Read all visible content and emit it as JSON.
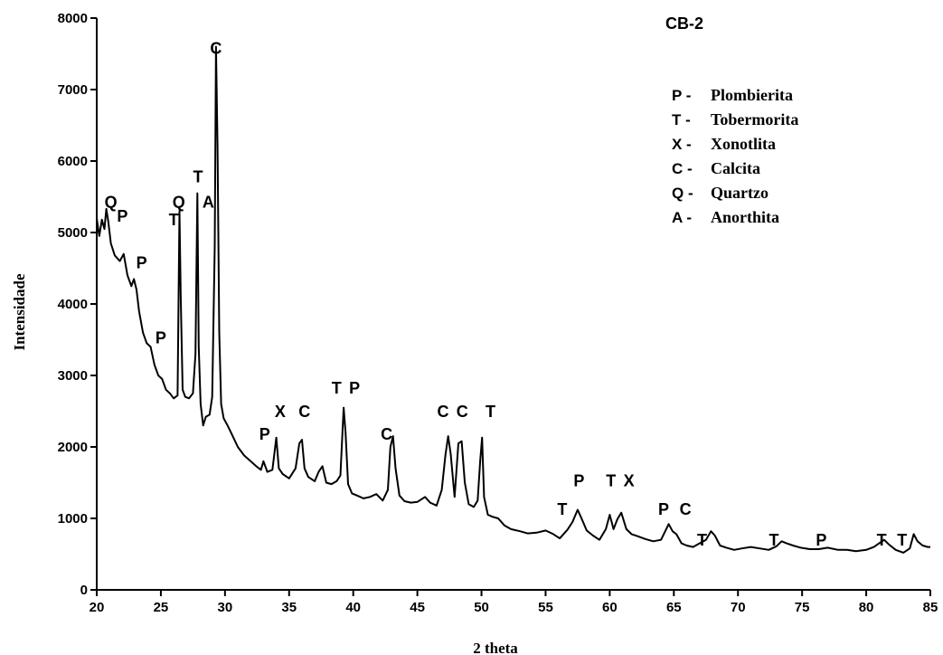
{
  "chart_data": {
    "type": "line",
    "title": "CB-2",
    "xlabel": "2 theta",
    "ylabel": "Intensidade",
    "xlim": [
      20,
      85
    ],
    "ylim": [
      0,
      8000
    ],
    "x_ticks": [
      "20",
      "25",
      "30",
      "35",
      "40",
      "45",
      "50",
      "55",
      "60",
      "65",
      "70",
      "75",
      "80",
      "85"
    ],
    "y_ticks": [
      "0",
      "1000",
      "2000",
      "3000",
      "4000",
      "5000",
      "6000",
      "7000",
      "8000"
    ],
    "grid": false,
    "legend_position": "top-right",
    "legend": [
      {
        "code": "P -",
        "name": "Plombierita"
      },
      {
        "code": "T -",
        "name": "Tobermorita"
      },
      {
        "code": "X -",
        "name": "Xonotlita"
      },
      {
        "code": "C -",
        "name": "Calcita"
      },
      {
        "code": "Q -",
        "name": "Quartzo"
      },
      {
        "code": "A -",
        "name": "Anorthita"
      }
    ],
    "peak_labels": [
      {
        "text": "Q",
        "x": 21.1,
        "y": 5350
      },
      {
        "text": "P",
        "x": 22.0,
        "y": 5150
      },
      {
        "text": "P",
        "x": 23.5,
        "y": 4500
      },
      {
        "text": "P",
        "x": 25.0,
        "y": 3450
      },
      {
        "text": "Q",
        "x": 26.4,
        "y": 5350
      },
      {
        "text": "T",
        "x": 26.0,
        "y": 5100
      },
      {
        "text": "T",
        "x": 27.9,
        "y": 5700
      },
      {
        "text": "A",
        "x": 28.7,
        "y": 5350
      },
      {
        "text": "C",
        "x": 29.3,
        "y": 7500
      },
      {
        "text": "P",
        "x": 33.1,
        "y": 2100
      },
      {
        "text": "X",
        "x": 34.3,
        "y": 2420
      },
      {
        "text": "C",
        "x": 36.2,
        "y": 2420
      },
      {
        "text": "T",
        "x": 38.7,
        "y": 2750
      },
      {
        "text": "P",
        "x": 40.1,
        "y": 2750
      },
      {
        "text": "C",
        "x": 42.6,
        "y": 2100
      },
      {
        "text": "C",
        "x": 47.0,
        "y": 2420
      },
      {
        "text": "C",
        "x": 48.5,
        "y": 2420
      },
      {
        "text": "T",
        "x": 50.7,
        "y": 2420
      },
      {
        "text": "T",
        "x": 56.3,
        "y": 1050
      },
      {
        "text": "P",
        "x": 57.6,
        "y": 1450
      },
      {
        "text": "T",
        "x": 60.1,
        "y": 1450
      },
      {
        "text": "X",
        "x": 61.5,
        "y": 1450
      },
      {
        "text": "P",
        "x": 64.2,
        "y": 1050
      },
      {
        "text": "C",
        "x": 65.9,
        "y": 1050
      },
      {
        "text": "T",
        "x": 67.2,
        "y": 620
      },
      {
        "text": "T",
        "x": 72.8,
        "y": 620
      },
      {
        "text": "P",
        "x": 76.5,
        "y": 620
      },
      {
        "text": "T",
        "x": 81.2,
        "y": 620
      },
      {
        "text": "T",
        "x": 82.8,
        "y": 620
      }
    ],
    "series": [
      {
        "x": [
          20.0,
          20.2,
          20.4,
          20.6,
          20.75,
          20.9,
          21.1,
          21.4,
          21.8,
          22.1,
          22.4,
          22.7,
          22.9,
          23.1,
          23.3,
          23.6,
          23.9,
          24.2,
          24.5,
          24.8,
          25.1,
          25.4,
          25.7,
          26.0,
          26.3,
          26.45,
          26.55,
          26.7,
          26.9,
          27.2,
          27.5,
          27.7,
          27.85,
          27.95,
          28.1,
          28.3,
          28.5,
          28.8,
          29.0,
          29.2,
          29.3,
          29.42,
          29.55,
          29.7,
          29.9,
          30.2,
          30.6,
          31.0,
          31.5,
          32.0,
          32.5,
          32.8,
          33.0,
          33.3,
          33.7,
          34.0,
          34.2,
          34.5,
          35.0,
          35.5,
          35.8,
          36.0,
          36.2,
          36.5,
          37.0,
          37.3,
          37.6,
          37.9,
          38.3,
          38.7,
          39.0,
          39.25,
          39.4,
          39.6,
          39.9,
          40.3,
          40.8,
          41.3,
          41.8,
          42.3,
          42.7,
          42.9,
          43.1,
          43.3,
          43.6,
          44.0,
          44.5,
          45.0,
          45.6,
          46.0,
          46.5,
          46.9,
          47.2,
          47.4,
          47.6,
          47.9,
          48.2,
          48.45,
          48.7,
          49.0,
          49.4,
          49.7,
          49.9,
          50.05,
          50.2,
          50.5,
          50.9,
          51.3,
          51.8,
          52.3,
          53.0,
          53.6,
          54.3,
          55.0,
          55.6,
          56.1,
          56.7,
          57.1,
          57.5,
          57.8,
          58.2,
          58.7,
          59.2,
          59.7,
          60.0,
          60.3,
          60.6,
          60.9,
          61.3,
          61.7,
          62.2,
          62.8,
          63.4,
          64.0,
          64.6,
          64.9,
          65.2,
          65.6,
          66.0,
          66.5,
          67.0,
          67.5,
          67.9,
          68.2,
          68.6,
          69.1,
          69.7,
          70.3,
          71.0,
          71.7,
          72.4,
          73.0,
          73.4,
          73.8,
          74.3,
          74.9,
          75.6,
          76.3,
          77.0,
          77.8,
          78.5,
          79.2,
          80.0,
          80.6,
          81.0,
          81.4,
          81.8,
          82.3,
          82.9,
          83.4,
          83.7,
          84.0,
          84.4,
          84.8,
          85.0
        ],
        "y": [
          5200,
          4950,
          5180,
          5050,
          5330,
          5150,
          4850,
          4680,
          4600,
          4700,
          4400,
          4250,
          4350,
          4200,
          3900,
          3600,
          3450,
          3400,
          3150,
          3000,
          2950,
          2800,
          2750,
          2680,
          2720,
          5300,
          4100,
          2800,
          2700,
          2680,
          2750,
          3300,
          5550,
          3400,
          2600,
          2300,
          2420,
          2450,
          2700,
          4800,
          7600,
          6200,
          3600,
          2600,
          2400,
          2300,
          2150,
          2000,
          1880,
          1800,
          1720,
          1680,
          1800,
          1650,
          1680,
          2130,
          1700,
          1620,
          1560,
          1700,
          2050,
          2100,
          1700,
          1580,
          1520,
          1650,
          1730,
          1500,
          1480,
          1520,
          1600,
          2550,
          2200,
          1480,
          1350,
          1320,
          1280,
          1300,
          1340,
          1250,
          1400,
          2000,
          2150,
          1700,
          1320,
          1240,
          1220,
          1230,
          1300,
          1220,
          1180,
          1400,
          1900,
          2150,
          1900,
          1300,
          2050,
          2080,
          1500,
          1200,
          1160,
          1250,
          1800,
          2130,
          1300,
          1050,
          1020,
          1000,
          900,
          850,
          820,
          790,
          800,
          830,
          780,
          720,
          840,
          950,
          1120,
          1000,
          830,
          760,
          700,
          850,
          1050,
          850,
          990,
          1080,
          850,
          780,
          750,
          710,
          680,
          700,
          920,
          820,
          780,
          650,
          620,
          600,
          650,
          700,
          820,
          760,
          620,
          590,
          560,
          580,
          600,
          580,
          560,
          610,
          680,
          650,
          620,
          590,
          570,
          570,
          590,
          560,
          560,
          540,
          560,
          600,
          650,
          700,
          630,
          560,
          520,
          580,
          780,
          680,
          620,
          600,
          600
        ]
      }
    ]
  }
}
